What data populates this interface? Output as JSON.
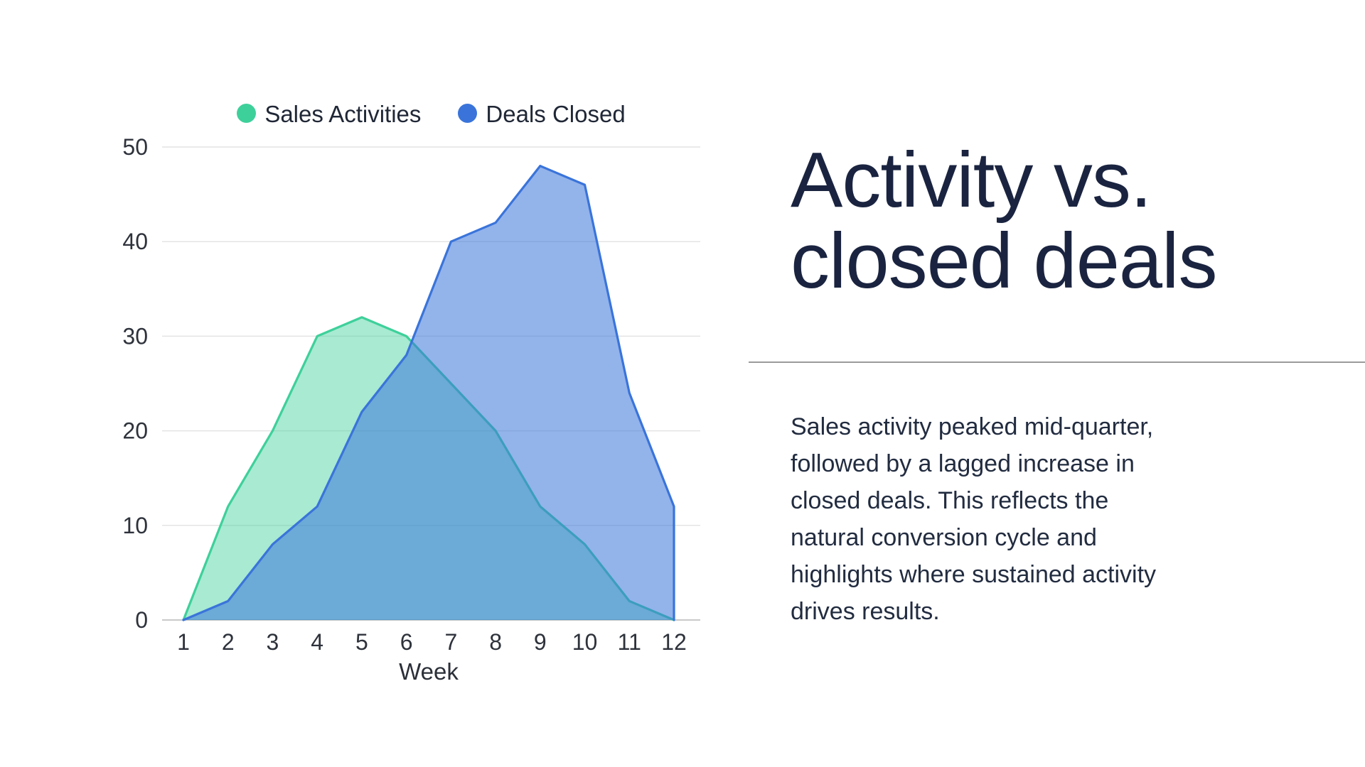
{
  "slide": {
    "title_lines": [
      "Activity vs.",
      "closed deals"
    ],
    "body_lines": [
      "Sales activity peaked mid-quarter,",
      "followed by a lagged increase in",
      "closed deals. This reflects the",
      "natural conversion cycle and",
      "highlights where sustained activity",
      "drives results."
    ]
  },
  "chart_data": {
    "type": "area",
    "x": [
      1,
      2,
      3,
      4,
      5,
      6,
      7,
      8,
      9,
      10,
      11,
      12
    ],
    "xlabel": "Week",
    "ylim": [
      0,
      50
    ],
    "yticks": [
      0,
      10,
      20,
      30,
      40,
      50
    ],
    "grid": true,
    "legend_position": "top",
    "series": [
      {
        "name": "Sales Activities",
        "color": "#3ed09b",
        "fill_opacity": 0.45,
        "values": [
          0,
          12,
          20,
          30,
          32,
          30,
          25,
          20,
          12,
          8,
          2,
          0
        ]
      },
      {
        "name": "Deals Closed",
        "color": "#3a74da",
        "fill_opacity": 0.55,
        "values": [
          0,
          2,
          8,
          12,
          22,
          28,
          40,
          42,
          48,
          46,
          24,
          12
        ]
      }
    ]
  }
}
